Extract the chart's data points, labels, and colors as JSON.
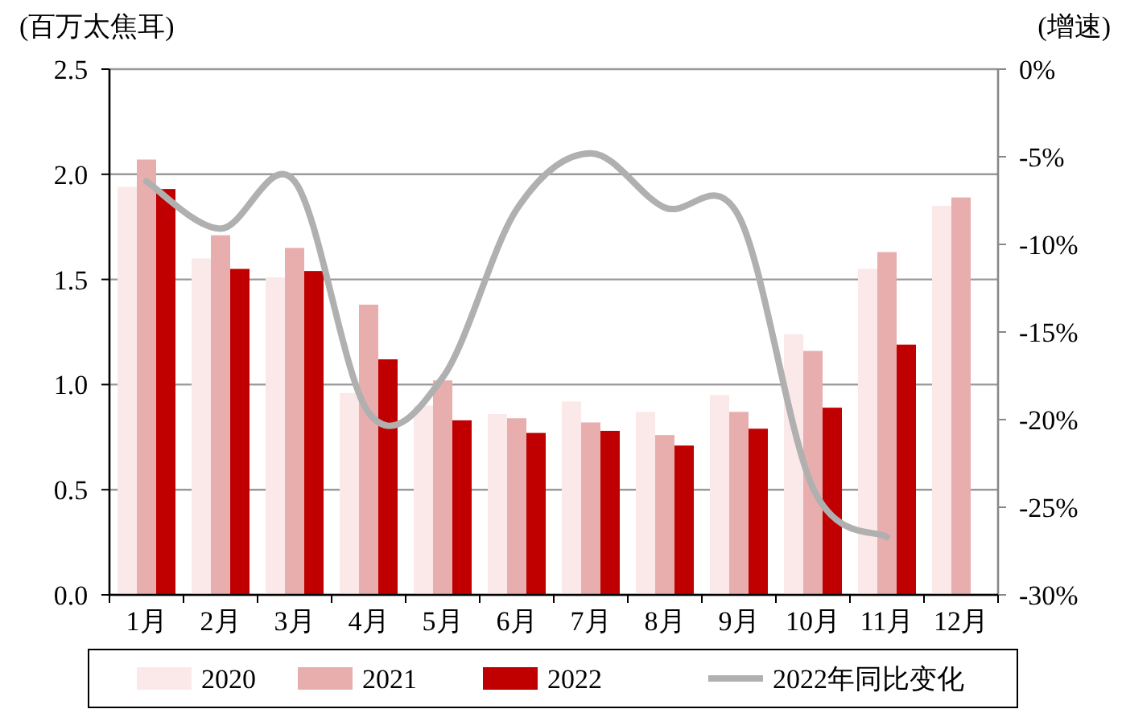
{
  "chart_data": {
    "type": "bar",
    "ylabel": "(百万太焦耳)",
    "y2label": "(增速)",
    "categories": [
      "1月",
      "2月",
      "3月",
      "4月",
      "5月",
      "6月",
      "7月",
      "8月",
      "9月",
      "10月",
      "11月",
      "12月"
    ],
    "series": [
      {
        "name": "2020",
        "color": "#fbe9e9",
        "values": [
          1.94,
          1.6,
          1.51,
          0.96,
          0.9,
          0.86,
          0.92,
          0.87,
          0.95,
          1.24,
          1.55,
          1.85
        ]
      },
      {
        "name": "2021",
        "color": "#e8aeae",
        "values": [
          2.07,
          1.71,
          1.65,
          1.38,
          1.02,
          0.84,
          0.82,
          0.76,
          0.87,
          1.16,
          1.63,
          1.89
        ]
      },
      {
        "name": "2022",
        "color": "#c00000",
        "values": [
          1.93,
          1.55,
          1.54,
          1.12,
          0.83,
          0.77,
          0.78,
          0.71,
          0.79,
          0.89,
          1.19,
          null
        ]
      },
      {
        "name": "2022年同比变化",
        "type": "line",
        "axis": "y2",
        "color": "#b0b0b0",
        "values": [
          -6.4,
          -9.1,
          -6.4,
          -19.6,
          -17.6,
          -8.0,
          -4.8,
          -7.9,
          -8.4,
          -23.9,
          -26.7,
          null
        ]
      }
    ],
    "ylim": [
      0,
      2.5
    ],
    "yticks": [
      {
        "value": 0,
        "label": "0.0"
      },
      0.5,
      {
        "value": 1,
        "label": "1.0"
      },
      1.5,
      {
        "value": 2,
        "label": "2.0"
      },
      2.5
    ],
    "y2lim": [
      -30,
      0
    ],
    "y2ticks": [
      {
        "value": -30,
        "label": "-30%"
      },
      {
        "value": -25,
        "label": "-25%"
      },
      {
        "value": -20,
        "label": "-20%"
      },
      {
        "value": -15,
        "label": "-15%"
      },
      {
        "value": -10,
        "label": "-10%"
      },
      {
        "value": -5,
        "label": "-5%"
      },
      {
        "value": 0,
        "label": "0%"
      }
    ],
    "grid": "y",
    "legend": "bottom",
    "line_style": "solid",
    "marker": "none"
  }
}
